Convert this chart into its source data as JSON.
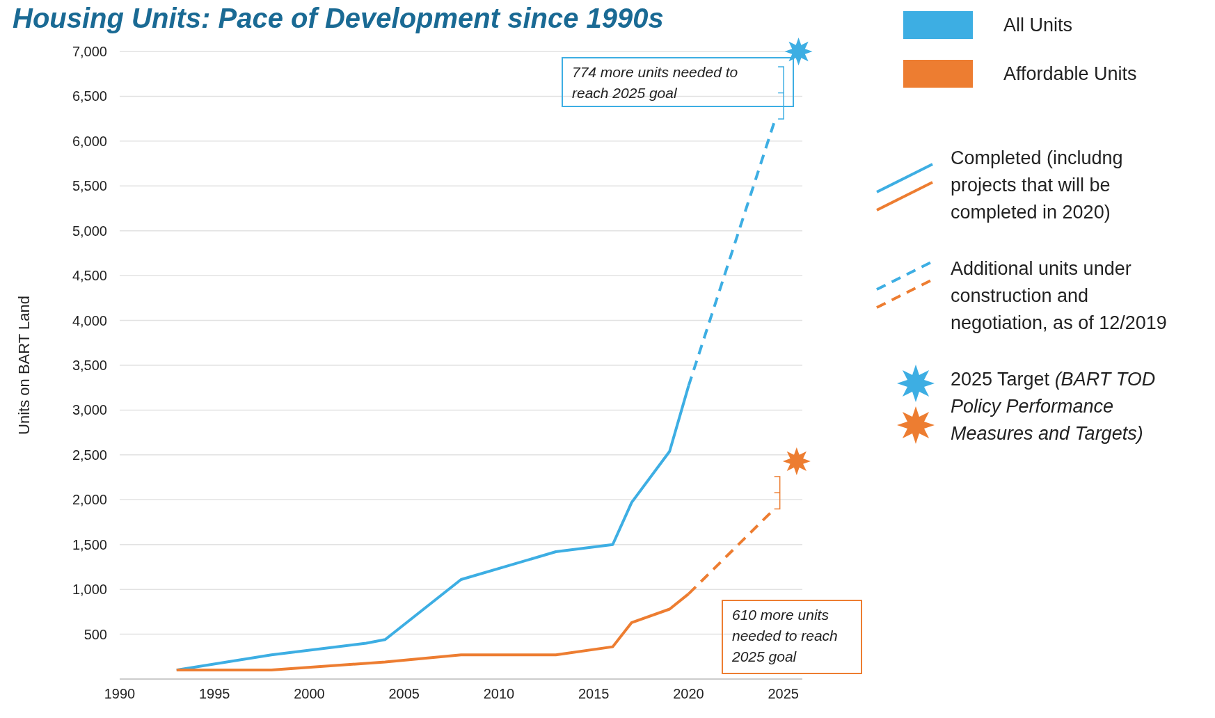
{
  "chart_data": {
    "type": "line",
    "title": "Housing Units: Pace of Development since 1990s",
    "ylabel": "Units on BART Land",
    "xlim": [
      1990,
      2026
    ],
    "xticks": [
      1990,
      1995,
      2000,
      2005,
      2010,
      2015,
      2020,
      2025
    ],
    "ylim": [
      0,
      7000
    ],
    "yticks": [
      500,
      {
        "value": 1000,
        "label": "1,000"
      },
      {
        "value": 1500,
        "label": "1,500"
      },
      {
        "value": 2000,
        "label": "2,000"
      },
      {
        "value": 2500,
        "label": "2,500"
      },
      {
        "value": 3000,
        "label": "3,000"
      },
      {
        "value": 3500,
        "label": "3,500"
      },
      {
        "value": 4000,
        "label": "4,000"
      },
      {
        "value": 4500,
        "label": "4,500"
      },
      {
        "value": 5000,
        "label": "5,000"
      },
      {
        "value": 5500,
        "label": "5,500"
      },
      {
        "value": 6000,
        "label": "6,000"
      },
      {
        "value": 6500,
        "label": "6,500"
      },
      {
        "value": 7000,
        "label": "7,000"
      }
    ],
    "grid": "y",
    "legend": "top right",
    "series": [
      {
        "name": "All Units",
        "color": "#3daee3",
        "line_style": "solid",
        "x": [
          1993,
          1998,
          2003,
          2004,
          2008,
          2013,
          2016,
          2017,
          2019,
          2020
        ],
        "values": [
          100,
          270,
          400,
          440,
          1110,
          1420,
          1500,
          1970,
          2540,
          3270
        ]
      },
      {
        "name": "Affordable Units",
        "color": "#ed7d31",
        "line_style": "solid",
        "x": [
          1993,
          1998,
          2004,
          2008,
          2013,
          2016,
          2017,
          2019,
          2020
        ],
        "values": [
          100,
          100,
          190,
          270,
          270,
          360,
          630,
          780,
          950
        ]
      },
      {
        "color": "#3daee3",
        "line_style": "dashed",
        "x": [
          2020,
          2024.5
        ],
        "values": [
          3270,
          6200
        ]
      },
      {
        "color": "#ed7d31",
        "line_style": "dashed",
        "x": [
          2020,
          2024.3
        ],
        "values": [
          950,
          1850
        ]
      },
      {
        "type": "scatter",
        "marker": "star",
        "color": "#3daee3",
        "x": [
          2025.8
        ],
        "values": [
          7000
        ]
      },
      {
        "type": "scatter",
        "marker": "star",
        "color": "#ed7d31",
        "x": [
          2025.7
        ],
        "values": [
          2430
        ]
      }
    ],
    "annotations": [
      "774 more units needed to reach 2025 goal",
      "610 more units needed to reach 2025 goal",
      "Completed (includng projects that will be completed in 2020)",
      "Additional units under construction and negotiation, as of 12/2019",
      "2025 Target (BART TOD Policy Performance Measures and Targets)"
    ]
  }
}
